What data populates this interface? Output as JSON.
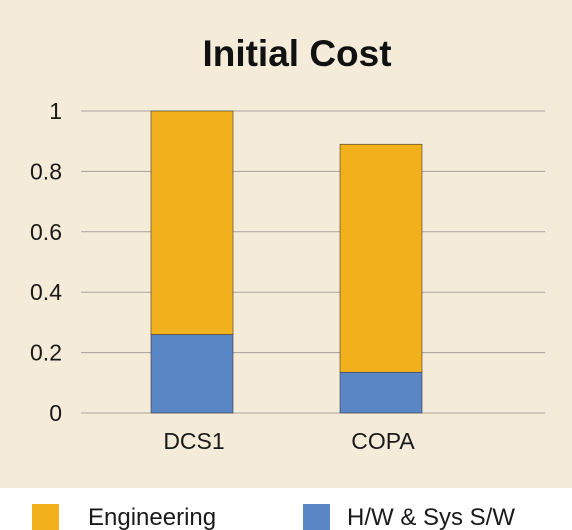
{
  "chart_data": {
    "type": "bar",
    "stacked": true,
    "title": "Initial Cost",
    "xlabel": "",
    "ylabel": "",
    "categories": [
      "DCS1",
      "COPA"
    ],
    "series": [
      {
        "name": "H/W & Sys S/W",
        "values": [
          0.26,
          0.135
        ],
        "color": "#5b86c6"
      },
      {
        "name": "Engineering",
        "values": [
          0.74,
          0.755
        ],
        "color": "#f2b11c"
      }
    ],
    "ylim": [
      0,
      1
    ],
    "yticks": [
      0,
      0.2,
      0.4,
      0.6,
      0.8,
      1
    ],
    "ytick_labels": [
      "0",
      "0.2",
      "0.4",
      "0.6",
      "0.8",
      "1"
    ],
    "grid": true,
    "legend_placement": "bottom",
    "legend_order": [
      "Engineering",
      "H/W & Sys S/W"
    ]
  },
  "colors": {
    "plot_background": "#f4ecd9",
    "legend_background": "#ffffff",
    "gridline": "#a7a29a"
  }
}
